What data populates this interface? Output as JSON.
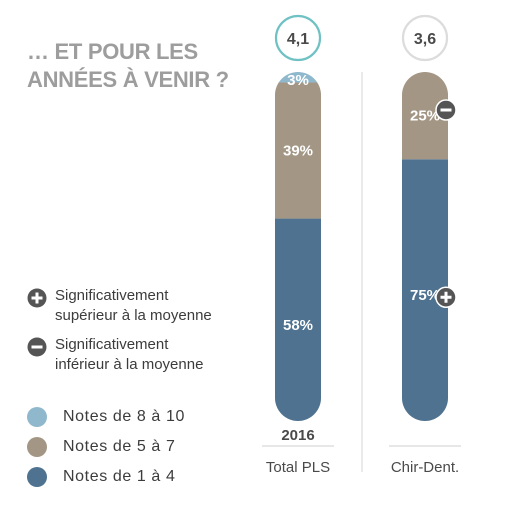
{
  "heading": {
    "line1": "… ET POUR LES",
    "line2": "ANNÉES À VENIR ?"
  },
  "significance_legend": [
    {
      "icon": "plus-circle-icon",
      "line1": "Significativement",
      "line2": "supérieur à la moyenne"
    },
    {
      "icon": "minus-circle-icon",
      "line1": "Significativement",
      "line2": "inférieur à la moyenne"
    }
  ],
  "color_legend": [
    {
      "label": "Notes de 8 à 10",
      "color": "#8fb8cc"
    },
    {
      "label": "Notes de 5 à 7",
      "color": "#a39684"
    },
    {
      "label": "Notes de 1 à 4",
      "color": "#4e7290"
    }
  ],
  "chart_data": {
    "type": "bar",
    "stacked": true,
    "orientation": "vertical",
    "categories": [
      "Total PLS",
      "Chir-Dent."
    ],
    "year_label": "2016",
    "average_scores": [
      "4,1",
      "3,6"
    ],
    "highlighted_score_index": 0,
    "series": [
      {
        "name": "Notes de 1 à 4",
        "color": "#4e7290",
        "values": [
          58,
          75
        ],
        "labels": [
          "58%",
          "75%"
        ],
        "markers": [
          null,
          "plus-circle-icon"
        ]
      },
      {
        "name": "Notes de 5 à 7",
        "color": "#a39684",
        "values": [
          39,
          25
        ],
        "labels": [
          "39%",
          "25%"
        ],
        "markers": [
          null,
          "minus-circle-icon"
        ]
      },
      {
        "name": "Notes de 8 à 10",
        "color": "#8fb8cc",
        "values": [
          3,
          0
        ],
        "labels": [
          "3%",
          ""
        ],
        "markers": [
          null,
          null
        ]
      }
    ],
    "ylim": [
      0,
      100
    ],
    "grid": false,
    "legend_position": "left"
  }
}
